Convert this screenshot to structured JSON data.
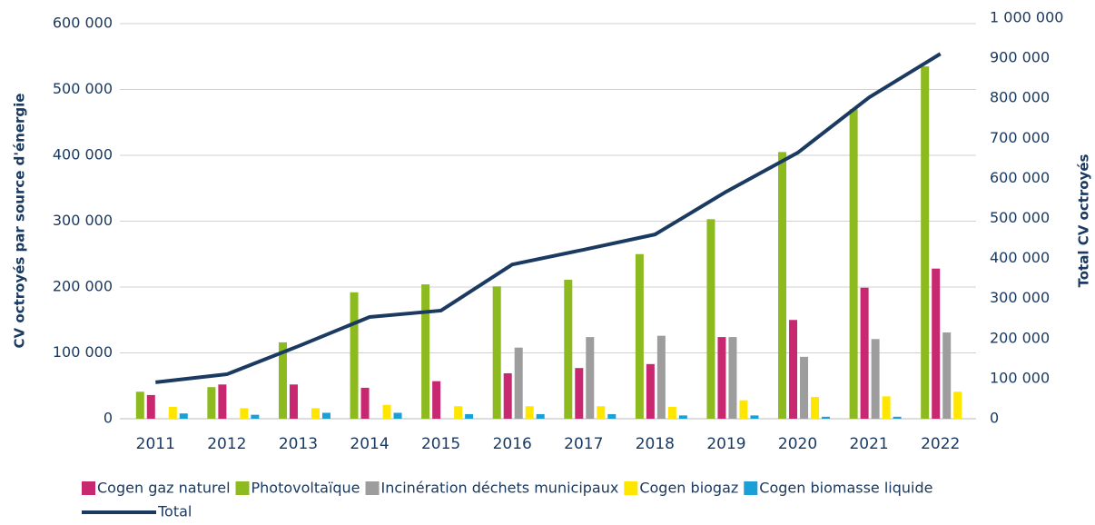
{
  "chart_data": {
    "type": "bar",
    "y_label": "CV octroyés par source d'énergie",
    "y2_label": "Total CV octroyés",
    "categories": [
      "2011",
      "2012",
      "2013",
      "2014",
      "2015",
      "2016",
      "2017",
      "2018",
      "2019",
      "2020",
      "2021",
      "2022"
    ],
    "series": [
      {
        "name": "Cogen gaz naturel",
        "color": "#c8286f",
        "values": [
          36000,
          52000,
          52000,
          47000,
          57000,
          69000,
          77000,
          83000,
          124000,
          150000,
          199000,
          228000
        ]
      },
      {
        "name": "Photovoltaïque",
        "color": "#8dba1e",
        "values": [
          41000,
          48000,
          116000,
          192000,
          204000,
          201000,
          211000,
          250000,
          303000,
          405000,
          470000,
          535000
        ]
      },
      {
        "name": "Incinération déchets municipaux",
        "color": "#9d9d9d",
        "values": [
          0,
          0,
          0,
          0,
          0,
          108000,
          124000,
          126000,
          124000,
          94000,
          121000,
          131000
        ]
      },
      {
        "name": "Cogen biogaz",
        "color": "#ffe600",
        "values": [
          18000,
          16000,
          16000,
          21000,
          19000,
          19000,
          19000,
          18000,
          28000,
          33000,
          34000,
          41000
        ]
      },
      {
        "name": "Cogen biomasse liquide",
        "color": "#1a9fd6",
        "values": [
          8000,
          6000,
          9000,
          9000,
          7000,
          7000,
          7000,
          5000,
          5000,
          3000,
          3000,
          0
        ]
      },
      {
        "name": "Total",
        "color": "#1b3a61",
        "type": "line",
        "axis": "y2",
        "values": [
          91000,
          111000,
          181000,
          254000,
          270000,
          385000,
          422000,
          460000,
          567000,
          664000,
          802000,
          911000
        ]
      }
    ],
    "ylim": [
      0,
      600000
    ],
    "yticks": [
      0,
      {
        "value": 100000,
        "label": "100 000"
      },
      {
        "value": 200000,
        "label": "200 000"
      },
      {
        "value": 300000,
        "label": "300 000"
      },
      {
        "value": 400000,
        "label": "400 000"
      },
      {
        "value": 500000,
        "label": "500 000"
      },
      {
        "value": 600000,
        "label": "600 000"
      }
    ],
    "y2lim": [
      0,
      1000000
    ],
    "y2ticks": [
      0,
      {
        "value": 100000,
        "label": "100 000"
      },
      {
        "value": 200000,
        "label": "200 000"
      },
      {
        "value": 300000,
        "label": "300 000"
      },
      {
        "value": 400000,
        "label": "400 000"
      },
      {
        "value": 500000,
        "label": "500 000"
      },
      {
        "value": 600000,
        "label": "600 000"
      },
      {
        "value": 700000,
        "label": "700 000"
      },
      {
        "value": 800000,
        "label": "800 000"
      },
      {
        "value": 900000,
        "label": "900 000"
      },
      {
        "value": 1000000,
        "label": "1 000 000"
      }
    ],
    "grid": true
  }
}
